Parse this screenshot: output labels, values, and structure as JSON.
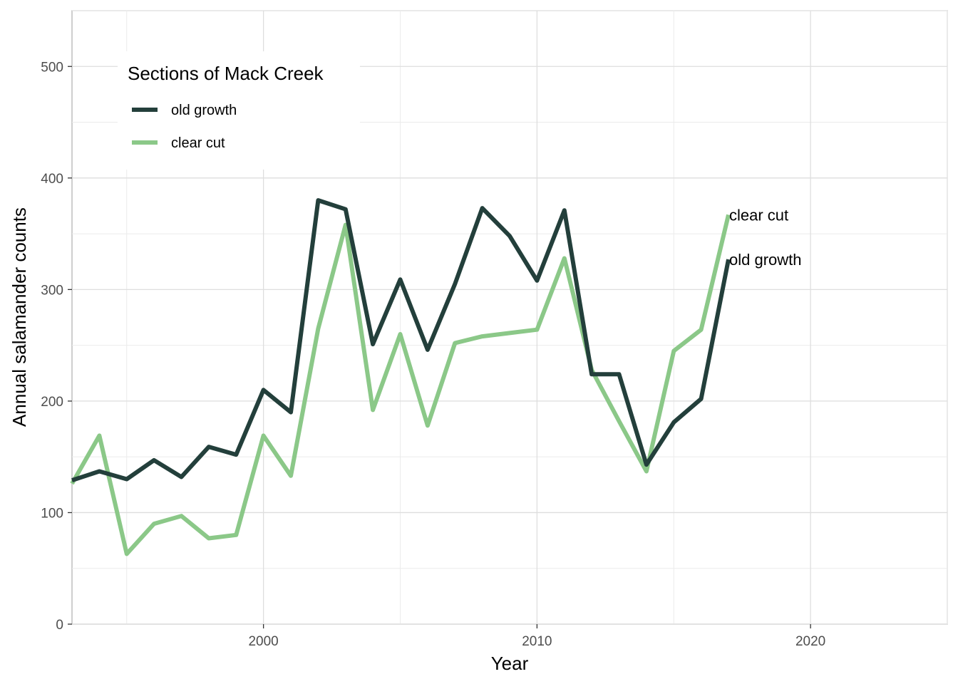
{
  "chart_data": {
    "type": "line",
    "xlabel": "Year",
    "ylabel": "Annual salamander counts",
    "xlim": [
      1993,
      2025
    ],
    "ylim": [
      0,
      550
    ],
    "x_ticks": [
      2000,
      2010,
      2020
    ],
    "y_ticks": [
      0,
      100,
      200,
      300,
      400,
      500
    ],
    "grid": true,
    "legend": {
      "title": "Sections of Mack Creek",
      "placement": "top-left"
    },
    "series": [
      {
        "name": "old growth",
        "color": "#233f3b",
        "end_label": "old growth",
        "x": [
          1993,
          1994,
          1995,
          1996,
          1997,
          1998,
          1999,
          2000,
          2001,
          2002,
          2003,
          2004,
          2005,
          2006,
          2007,
          2008,
          2009,
          2010,
          2011,
          2012,
          2013,
          2014,
          2015,
          2016,
          2017
        ],
        "values": [
          129,
          137,
          130,
          147,
          132,
          159,
          152,
          210,
          190,
          380,
          372,
          251,
          309,
          246,
          305,
          373,
          348,
          308,
          371,
          224,
          224,
          143,
          181,
          202,
          327
        ]
      },
      {
        "name": "clear cut",
        "color": "#8bc888",
        "end_label": "clear cut",
        "x": [
          1993,
          1994,
          1995,
          1996,
          1997,
          1998,
          1999,
          2000,
          2001,
          2002,
          2003,
          2004,
          2005,
          2006,
          2007,
          2008,
          2009,
          2010,
          2011,
          2012,
          2013,
          2014,
          2015,
          2016,
          2017
        ],
        "values": [
          126,
          169,
          63,
          90,
          97,
          77,
          80,
          169,
          133,
          265,
          358,
          192,
          260,
          178,
          252,
          258,
          261,
          264,
          328,
          228,
          182,
          137,
          245,
          264,
          367
        ]
      }
    ]
  }
}
